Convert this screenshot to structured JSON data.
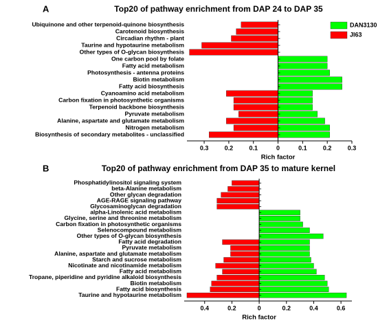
{
  "chart_data": [
    {
      "type": "diverging-bar",
      "label": "A",
      "title": "Top20 of pathway enrichment from DAP 24 to DAP 35",
      "x_label": "Rich factor",
      "legend": "upper right",
      "categories": [
        "Ubiquinone and other terpenoid-quinone biosynthesis",
        "Carotenoid biosynthesis",
        "Circadian rhythm - plant",
        "Taurine and hypotaurine metabolism",
        "Other types of O-glycan biosynthesis",
        "One carbon pool by folate",
        "Fatty acid metabolism",
        "Photosynthesis - antenna proteins",
        "Biotin metabolism",
        "Fatty acid biosynthesis",
        "Cyanoamino acid metabolism",
        "Carbon fixation in photosynthetic organisms",
        "Terpenoid backbone biosynthesis",
        "Pyruvate metabolism",
        "Alanine, aspartate and glutamate metabolism",
        "Nitrogen metabolism",
        "Biosynthesis of secondary metabolites - unclassified"
      ],
      "series": [
        {
          "name": "DAN3130",
          "color": "#00ff00",
          "values": [
            null,
            null,
            null,
            null,
            null,
            0.2,
            0.2,
            0.21,
            0.26,
            0.26,
            0.14,
            0.14,
            0.14,
            0.16,
            0.19,
            0.21,
            0.21
          ]
        },
        {
          "name": "JI63",
          "color": "#ff0000",
          "values": [
            -0.15,
            -0.17,
            -0.19,
            -0.31,
            -0.36,
            null,
            null,
            null,
            null,
            null,
            -0.21,
            -0.18,
            -0.18,
            -0.16,
            -0.21,
            -0.18,
            -0.28
          ]
        }
      ],
      "xlim": [
        -0.37,
        0.3
      ],
      "xticks": [
        {
          "value": -0.3,
          "label": "0.3"
        },
        {
          "value": -0.2,
          "label": "0.2"
        },
        {
          "value": -0.1,
          "label": "0.1"
        },
        0,
        0.1,
        0.2,
        0.3
      ]
    },
    {
      "type": "diverging-bar",
      "label": "B",
      "title": "Top20 of pathway enrichment from DAP 35 to mature kernel",
      "x_label": "Rich factor",
      "categories": [
        "Phosphatidylinositol signaling system",
        "beta-Alanine metabolism",
        "Other glycan degradation",
        "AGE-RAGE signaling pathway",
        "Glycosaminoglycan degradation",
        "alpha-Linolenic acid metabolism",
        "Glycine, serine and threonine metabolism",
        "Carbon fixation in photosynthetic organisms",
        "Selenocompound metabolism",
        "Other types of O-glycan biosynthesis",
        "Fatty acid degradation",
        "Pyruvate metabolism",
        "Alanine, aspartate and glutamate metabolism",
        "Starch and sucrose metabolism",
        "Nicotinate and nicotinamide metabolism",
        "Fatty acid metabolism",
        "Tropane, piperidine and pyridine alkaloid biosynthesis",
        "Biotin metabolism",
        "Fatty acid biosynthesis",
        "Taurine and hypotaurine metabolism"
      ],
      "series": [
        {
          "color": "#00ff00",
          "values": [
            null,
            null,
            null,
            null,
            null,
            0.3,
            0.3,
            0.32,
            0.37,
            0.47,
            0.37,
            0.37,
            0.37,
            0.38,
            0.4,
            0.42,
            0.48,
            0.5,
            0.51,
            0.64
          ]
        },
        {
          "color": "#ff0000",
          "values": [
            -0.2,
            -0.23,
            -0.28,
            -0.31,
            -0.31,
            null,
            null,
            null,
            null,
            null,
            -0.27,
            -0.21,
            -0.21,
            -0.26,
            -0.32,
            -0.27,
            -0.31,
            -0.35,
            -0.36,
            -0.53
          ]
        }
      ],
      "xlim": [
        -0.55,
        0.68
      ],
      "xticks": [
        {
          "value": -0.4,
          "label": "0.4"
        },
        {
          "value": -0.2,
          "label": "0.2"
        },
        0,
        0.2,
        0.4,
        0.6
      ]
    }
  ]
}
